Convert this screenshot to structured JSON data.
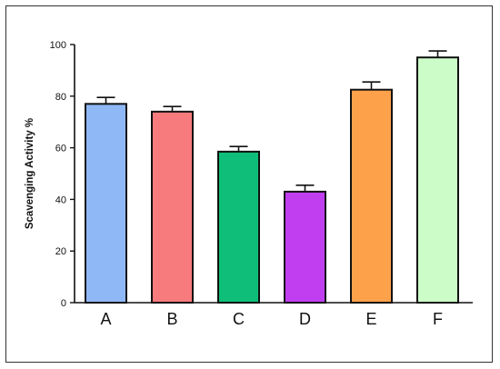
{
  "chart_data": {
    "type": "bar",
    "categories": [
      "A",
      "B",
      "C",
      "D",
      "E",
      "F"
    ],
    "values": [
      77,
      74,
      58.5,
      43,
      82.5,
      95
    ],
    "errors": [
      2.5,
      2,
      2,
      2.5,
      3,
      2.5
    ],
    "colors": [
      "#8fb8f7",
      "#f77b7d",
      "#0fbf79",
      "#c03ef0",
      "#fda24b",
      "#ccfcc8"
    ],
    "title": "",
    "xlabel": "",
    "ylabel": "Scavenging Activity %",
    "ylim": [
      0,
      100
    ],
    "yticks": [
      0,
      20,
      40,
      60,
      80,
      100
    ],
    "grid": false,
    "legend": "none"
  }
}
